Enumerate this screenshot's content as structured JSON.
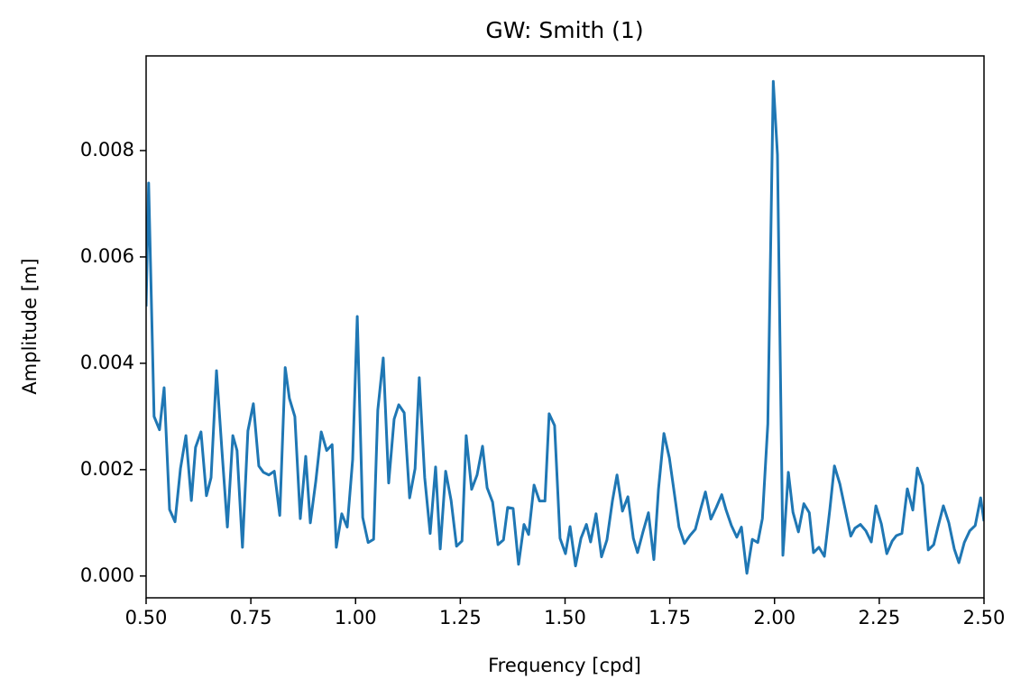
{
  "chart_data": {
    "type": "line",
    "title": "GW: Smith (1)",
    "x_label": "Frequency [cpd]",
    "y_label": "Amplitude [m]",
    "x": [
      0.5,
      0.506,
      0.519,
      0.532,
      0.543,
      0.556,
      0.569,
      0.582,
      0.595,
      0.608,
      0.618,
      0.631,
      0.644,
      0.655,
      0.668,
      0.681,
      0.694,
      0.707,
      0.717,
      0.73,
      0.743,
      0.756,
      0.769,
      0.78,
      0.793,
      0.806,
      0.819,
      0.832,
      0.842,
      0.855,
      0.868,
      0.881,
      0.892,
      0.905,
      0.918,
      0.931,
      0.944,
      0.954,
      0.967,
      0.98,
      0.993,
      1.004,
      1.017,
      1.03,
      1.043,
      1.053,
      1.066,
      1.079,
      1.092,
      1.103,
      1.116,
      1.129,
      1.142,
      1.152,
      1.165,
      1.178,
      1.191,
      1.202,
      1.215,
      1.228,
      1.241,
      1.254,
      1.264,
      1.277,
      1.29,
      1.303,
      1.314,
      1.327,
      1.34,
      1.353,
      1.363,
      1.376,
      1.389,
      1.402,
      1.413,
      1.426,
      1.439,
      1.452,
      1.462,
      1.475,
      1.488,
      1.501,
      1.512,
      1.525,
      1.538,
      1.551,
      1.561,
      1.574,
      1.587,
      1.6,
      1.613,
      1.624,
      1.637,
      1.65,
      1.663,
      1.673,
      1.686,
      1.699,
      1.712,
      1.723,
      1.736,
      1.749,
      1.762,
      1.772,
      1.785,
      1.798,
      1.811,
      1.824,
      1.835,
      1.848,
      1.861,
      1.874,
      1.884,
      1.897,
      1.91,
      1.921,
      1.934,
      1.947,
      1.96,
      1.971,
      1.984,
      1.997,
      2.007,
      2.02,
      2.033,
      2.044,
      2.057,
      2.07,
      2.083,
      2.093,
      2.106,
      2.119,
      2.132,
      2.143,
      2.156,
      2.169,
      2.182,
      2.192,
      2.205,
      2.218,
      2.231,
      2.242,
      2.255,
      2.268,
      2.281,
      2.291,
      2.304,
      2.317,
      2.33,
      2.341,
      2.354,
      2.367,
      2.38,
      2.39,
      2.403,
      2.416,
      2.429,
      2.44,
      2.453,
      2.466,
      2.479,
      2.492,
      2.5
    ],
    "series": [
      {
        "name": "Amplitude",
        "color": "#1f77b4",
        "values": [
          0.00507,
          0.00739,
          0.003,
          0.00275,
          0.00354,
          0.00125,
          0.00102,
          0.00202,
          0.00264,
          0.00142,
          0.00242,
          0.00271,
          0.00151,
          0.00185,
          0.00386,
          0.00236,
          0.00092,
          0.00264,
          0.00236,
          0.00054,
          0.00273,
          0.00324,
          0.00207,
          0.00195,
          0.0019,
          0.00197,
          0.00114,
          0.00392,
          0.00334,
          0.003,
          0.00108,
          0.00225,
          0.001,
          0.00178,
          0.00271,
          0.00236,
          0.00247,
          0.00054,
          0.00117,
          0.00092,
          0.00219,
          0.00488,
          0.0011,
          0.00063,
          0.00069,
          0.00312,
          0.0041,
          0.00175,
          0.00295,
          0.00322,
          0.00307,
          0.00147,
          0.00202,
          0.00373,
          0.00185,
          0.0008,
          0.00205,
          0.00051,
          0.00197,
          0.00142,
          0.00056,
          0.00066,
          0.00264,
          0.00163,
          0.0019,
          0.00244,
          0.00166,
          0.00139,
          0.00059,
          0.00068,
          0.00129,
          0.00127,
          0.00022,
          0.00097,
          0.00078,
          0.00171,
          0.00141,
          0.00141,
          0.00305,
          0.00283,
          0.00071,
          0.00042,
          0.00093,
          0.00019,
          0.00071,
          0.00097,
          0.00064,
          0.00117,
          0.00036,
          0.00068,
          0.00141,
          0.0019,
          0.00122,
          0.00149,
          0.00071,
          0.00044,
          0.00083,
          0.00119,
          0.00031,
          0.00163,
          0.00268,
          0.00222,
          0.00149,
          0.00092,
          0.00061,
          0.00076,
          0.00088,
          0.00127,
          0.00158,
          0.00107,
          0.00129,
          0.00153,
          0.00125,
          0.00095,
          0.00073,
          0.00092,
          5e-05,
          0.00069,
          0.00063,
          0.00108,
          0.00286,
          0.0093,
          0.00792,
          0.00039,
          0.00195,
          0.0012,
          0.00083,
          0.00136,
          0.00119,
          0.00044,
          0.00054,
          0.00037,
          0.00125,
          0.00207,
          0.00173,
          0.00124,
          0.00075,
          0.0009,
          0.00097,
          0.00085,
          0.00064,
          0.00132,
          0.00098,
          0.00042,
          0.00066,
          0.00076,
          0.0008,
          0.00164,
          0.00124,
          0.00203,
          0.00171,
          0.00049,
          0.00059,
          0.00092,
          0.00132,
          0.001,
          0.00051,
          0.00025,
          0.00063,
          0.00085,
          0.00095,
          0.00147,
          0.00103
        ]
      }
    ],
    "xlim": [
      0.5,
      2.5
    ],
    "xticks": [
      {
        "value": 0.5,
        "label": "0.50"
      },
      {
        "value": 0.75,
        "label": "0.75"
      },
      {
        "value": 1,
        "label": "1.00"
      },
      {
        "value": 1.25,
        "label": "1.25"
      },
      {
        "value": 1.5,
        "label": "1.50"
      },
      {
        "value": 1.75,
        "label": "1.75"
      },
      {
        "value": 2,
        "label": "2.00"
      },
      {
        "value": 2.25,
        "label": "2.25"
      },
      {
        "value": 2.5,
        "label": "2.50"
      }
    ],
    "ylim": [
      -0.00041,
      0.00978
    ],
    "yticks": [
      {
        "value": 0,
        "label": "0.000"
      },
      0.002,
      0.004,
      0.006,
      0.008
    ],
    "grid": false
  }
}
